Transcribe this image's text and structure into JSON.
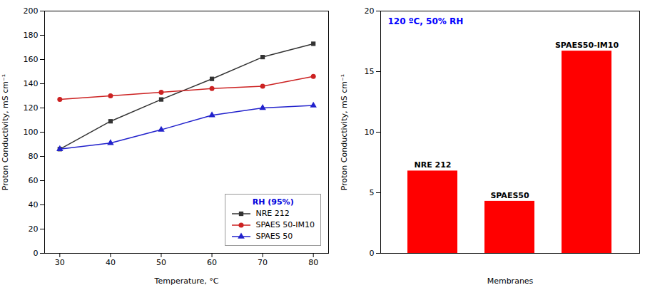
{
  "chart_data": [
    {
      "type": "line",
      "x": [
        30,
        40,
        50,
        60,
        70,
        80
      ],
      "series": [
        {
          "name": "NRE 212",
          "color": "#333333",
          "marker": "square",
          "values": [
            86,
            109,
            127,
            144,
            162,
            173
          ]
        },
        {
          "name": "SPAES 50-IM10",
          "color": "#cc2222",
          "marker": "circle",
          "values": [
            127,
            130,
            133,
            136,
            138,
            146
          ]
        },
        {
          "name": "SPAES 50",
          "color": "#2222cc",
          "marker": "triangle",
          "values": [
            86,
            91,
            102,
            114,
            120,
            122
          ]
        }
      ],
      "xlabel": "Temperature, °C",
      "ylabel": "Proton Conductivity, mS cm⁻¹",
      "xlim": [
        27,
        83
      ],
      "xticks": [
        30,
        40,
        50,
        60,
        70,
        80
      ],
      "ylim": [
        0,
        200
      ],
      "yticks": [
        0,
        20,
        40,
        60,
        80,
        100,
        120,
        140,
        160,
        180,
        200
      ],
      "legend": "lower right",
      "legend_title": {
        "text": "RH (95%)",
        "color": "#0000dd"
      }
    },
    {
      "type": "bar",
      "categories": [
        "NRE 212",
        "SPAES50",
        "SPAES50-IM10"
      ],
      "values": [
        6.8,
        4.3,
        16.7
      ],
      "color": "#ff0000",
      "xlabel": "Membranes",
      "ylabel": "Proton Conductivity, mS cm⁻¹",
      "ylim": [
        0,
        20
      ],
      "yticks": [
        0,
        5,
        10,
        15,
        20
      ],
      "tick_labels": "y",
      "annotations": [
        {
          "text": "120 ºC, 50% RH",
          "color": "#0000ff"
        }
      ]
    }
  ]
}
